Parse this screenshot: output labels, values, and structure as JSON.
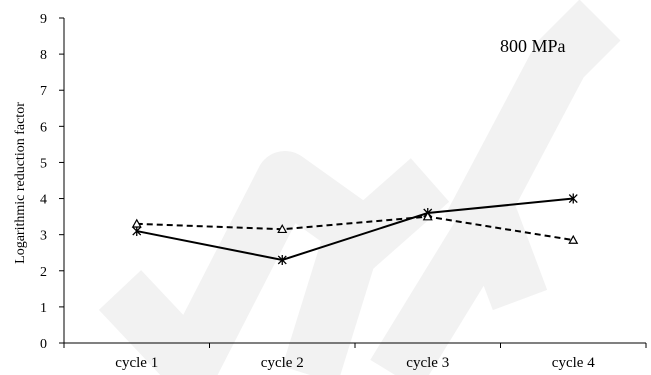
{
  "chart_data": {
    "type": "line",
    "categories": [
      "cycle 1",
      "cycle 2",
      "cycle 3",
      "cycle 4"
    ],
    "series": [
      {
        "style": "solid",
        "marker": "star",
        "color": "#000000",
        "values": [
          3.1,
          2.3,
          3.6,
          4.0
        ]
      },
      {
        "style": "dashed",
        "marker": "triangle",
        "color": "#000000",
        "values": [
          3.3,
          3.15,
          3.5,
          2.85
        ]
      }
    ],
    "annotation": "800 MPa",
    "xlabel": "",
    "ylabel": "Logarithmic reduction factor",
    "ylim": [
      0,
      9
    ],
    "yticks": [
      0,
      1,
      2,
      3,
      4,
      5,
      6,
      7,
      8,
      9
    ],
    "grid": false,
    "legend": "none"
  },
  "watermark": {
    "color": "#f2f2f2"
  }
}
